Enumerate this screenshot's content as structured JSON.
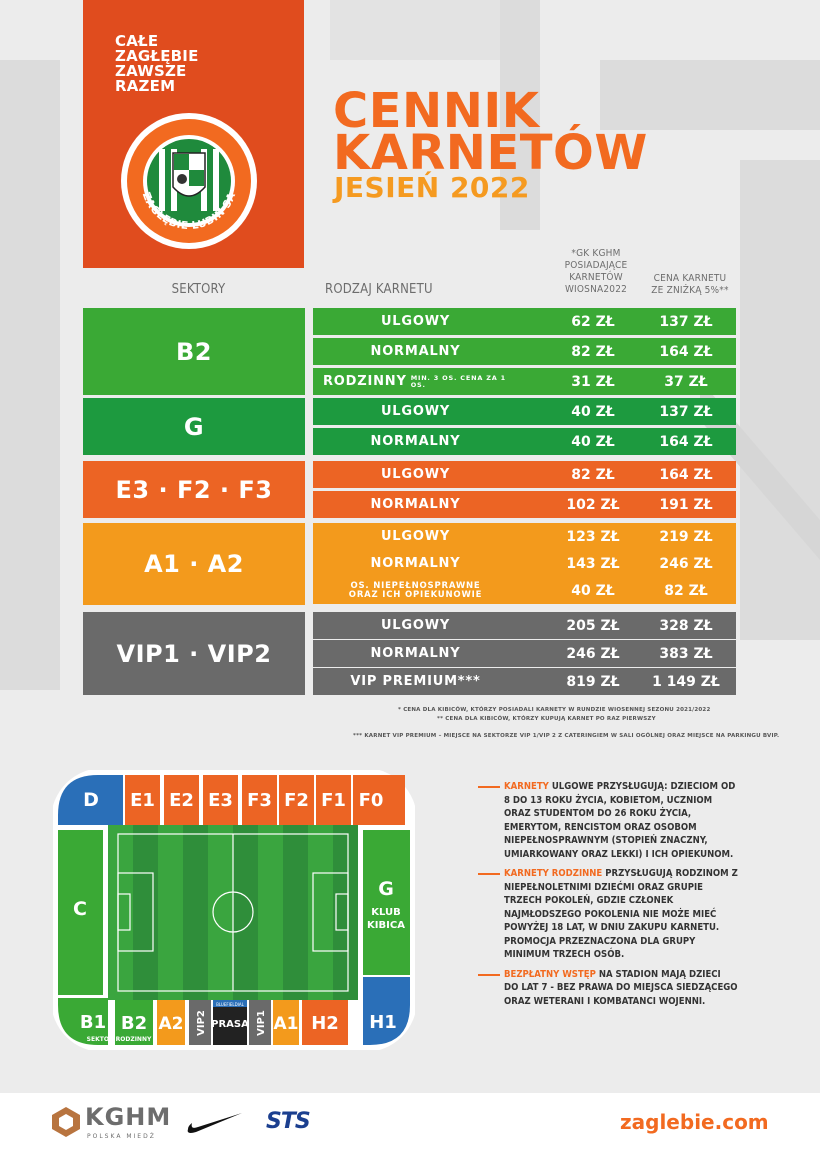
{
  "header": {
    "slogan": [
      "CAŁE",
      "ZAGŁĘBIE",
      "ZAWSZE",
      "RAZEM"
    ],
    "title_line1": "CENNIK",
    "title_line2": "KARNETÓW",
    "subtitle": "JESIEŃ 2022",
    "crest_text": "ZAGŁĘBIE LUBIN SA"
  },
  "table": {
    "headers": {
      "sectors": "SEKTORY",
      "type": "RODZAJ KARNETU",
      "col1": [
        "*GK KGHM",
        "POSIADAJĄCE",
        "KARNETÓW",
        "WIOSNA2022"
      ],
      "col2": [
        "CENA KARNETU",
        "ZE ZNIŻKĄ 5%**"
      ]
    },
    "groups": [
      {
        "sector": "B2",
        "color": "#3aa935",
        "rows": [
          {
            "label": "ULGOWY",
            "price1": "62 ZŁ",
            "price2": "137 ZŁ"
          },
          {
            "label": "NORMALNY",
            "price1": "82 ZŁ",
            "price2": "164 ZŁ"
          },
          {
            "label": "RODZINNY",
            "note": "MIN. 3 OS. CENA ZA 1 OS.",
            "price1": "31 ZŁ",
            "price2": "37 ZŁ"
          }
        ]
      },
      {
        "sector": "G",
        "color": "#1d9a3f",
        "rows": [
          {
            "label": "ULGOWY",
            "price1": "40 ZŁ",
            "price2": "137 ZŁ"
          },
          {
            "label": "NORMALNY",
            "price1": "40 ZŁ",
            "price2": "164 ZŁ"
          }
        ]
      },
      {
        "sector": "E3 · F2 · F3",
        "color": "#ec6424",
        "rows": [
          {
            "label": "ULGOWY",
            "price1": "82 ZŁ",
            "price2": "164 ZŁ"
          },
          {
            "label": "NORMALNY",
            "price1": "102 ZŁ",
            "price2": "191 ZŁ"
          }
        ]
      },
      {
        "sector": "A1 · A2",
        "color": "#f39a1c",
        "rows": [
          {
            "label": "ULGOWY",
            "price1": "123 ZŁ",
            "price2": "219 ZŁ"
          },
          {
            "label": "NORMALNY",
            "price1": "143 ZŁ",
            "price2": "246 ZŁ"
          },
          {
            "label_small": [
              "OS. NIEPEŁNOSPRAWNE",
              "ORAZ ICH OPIEKUNOWIE"
            ],
            "price1": "40 ZŁ",
            "price2": "82 ZŁ"
          }
        ]
      },
      {
        "sector": "VIP1 · VIP2",
        "color": "#6a6a6a",
        "rows": [
          {
            "label": "ULGOWY",
            "price1": "205 ZŁ",
            "price2": "328 ZŁ"
          },
          {
            "label": "NORMALNY",
            "price1": "246 ZŁ",
            "price2": "383 ZŁ"
          },
          {
            "label": "VIP PREMIUM***",
            "price1": "819 ZŁ",
            "price2": "1 149 ZŁ"
          }
        ]
      }
    ],
    "notes": [
      "* CENA DLA KIBICÓW, KTÓRZY POSIADALI KARNETY W RUNDZIE WIOSENNEJ SEZONU 2021/2022",
      "** CENA DLA KIBICÓW, KTÓRZY KUPUJĄ KARNET PO RAZ PIERWSZY",
      "*** KARNET VIP PREMIUM – MIEJSCE NA SEKTORZE VIP 1/VIP 2 Z CATERINGIEM W SALI OGÓLNEJ ORAZ MIEJSCE NA PARKINGU BVIP."
    ]
  },
  "stadium": {
    "top_sectors": [
      "D",
      "E1",
      "E2",
      "E3",
      "F3",
      "F2",
      "F1",
      "F0"
    ],
    "left_sector": "C",
    "right_sector": "G",
    "right_sector_sub": [
      "KLUB",
      "KIBICA"
    ],
    "bottom_sectors": [
      "B1",
      "B2",
      "A2",
      "VIP2",
      "PRASA",
      "VIP1",
      "A1",
      "H2",
      "H1"
    ],
    "family_sector_label": "SEKTOR RODZINNY",
    "bottom_small_label": "BLUEFIELDIAL"
  },
  "legend": [
    {
      "highlight": "KARNETY",
      "text": " ULGOWE PRZYSŁUGUJĄ: DZIECIOM OD 8 DO 13 ROKU ŻYCIA, KOBIETOM, UCZNIOM ORAZ STUDENTOM DO 26 ROKU ŻYCIA, EMERYTOM, RENCISTOM ORAZ OSOBOM NIEPEŁNOSPRAWNYM (STOPIEŃ ZNACZNY, UMIARKOWANY ORAZ LEKKI) I ICH OPIEKUNOM."
    },
    {
      "highlight": "KARNETY RODZINNE",
      "text": " PRZYSŁUGUJĄ RODZINOM Z NIEPEŁNOLETNIMI DZIEĆMI ORAZ GRUPIE TRZECH POKOLEŃ, GDZIE CZŁONEK NAJMŁODSZEGO POKOLENIA NIE MOŻE MIEĆ POWYŻEJ 18 LAT, W DNIU ZAKUPU KARNETU. PROMOCJA PRZEZNACZONA DLA GRUPY MINIMUM TRZECH OSÓB."
    },
    {
      "highlight": "BEZPŁATNY WSTĘP",
      "text": " NA STADION MAJĄ DZIECI DO LAT 7 - BEZ PRAWA DO MIEJSCA SIEDZĄCEGO ORAZ WETERANI I KOMBATANCI WOJENNI."
    }
  ],
  "footer": {
    "kghm": "KGHM",
    "kghm_sub": "POLSKA MIEDŹ",
    "sts": "STS",
    "website": "zaglebie.com"
  }
}
